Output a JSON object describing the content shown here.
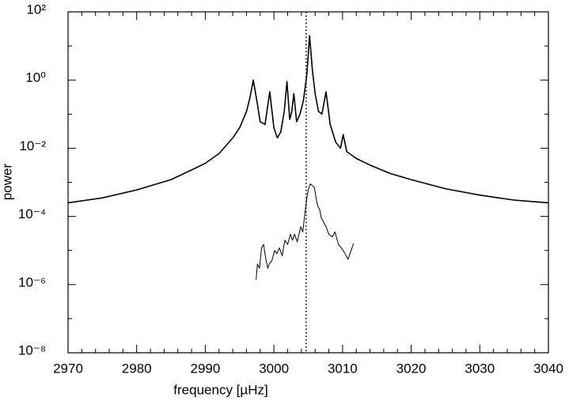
{
  "chart_data": {
    "type": "line",
    "xlabel": "frequency [µHz]",
    "ylabel": "power",
    "xlim": [
      2970,
      3040
    ],
    "ylim": [
      1e-08,
      100
    ],
    "yscale": "log",
    "xticks": [
      2970,
      2980,
      2990,
      3000,
      3010,
      3020,
      3030,
      3040
    ],
    "xminorticks": [
      2972,
      2974,
      2976,
      2978,
      2982,
      2984,
      2986,
      2988,
      2992,
      2994,
      2996,
      2998,
      3002,
      3004,
      3006,
      3008,
      3012,
      3014,
      3016,
      3018,
      3022,
      3024,
      3026,
      3028,
      3032,
      3034,
      3036,
      3038
    ],
    "yticks": [
      {
        "value": 1e-08,
        "label": "10⁻⁸"
      },
      {
        "value": 1e-06,
        "label": "10⁻⁶"
      },
      {
        "value": 0.0001,
        "label": "10⁻⁴"
      },
      {
        "value": 0.01,
        "label": "10⁻²"
      },
      {
        "value": 1,
        "label": "10⁰"
      },
      {
        "value": 100,
        "label": "10²"
      }
    ],
    "yminorticks": [
      1e-07,
      1e-05,
      0.001,
      0.1,
      10
    ],
    "vlines": [
      3004.7
    ],
    "series": [
      {
        "color": "#000000",
        "width": 1.6,
        "x": [
          2970,
          2975,
          2980,
          2985,
          2988,
          2990,
          2992,
          2994,
          2995,
          2996,
          2996.5,
          2997,
          2997.5,
          2998,
          2998.7,
          2999.4,
          3000,
          3000.5,
          3001,
          3001.5,
          3001.9,
          3002.3,
          3002.6,
          3002.9,
          3003.3,
          3003.8,
          3004.3,
          3004.8,
          3005.2,
          3005.6,
          3006,
          3006.5,
          3007,
          3007.6,
          3008.2,
          3009,
          3009.7,
          3010.1,
          3010.6,
          3012,
          3014,
          3017,
          3020,
          3025,
          3030,
          3035,
          3040
        ],
        "values": [
          0.00025,
          0.00035,
          0.0006,
          0.0012,
          0.0023,
          0.0036,
          0.007,
          0.02,
          0.04,
          0.12,
          0.3,
          1.0,
          0.25,
          0.06,
          0.05,
          0.45,
          0.04,
          0.02,
          0.03,
          0.12,
          0.9,
          0.07,
          0.12,
          0.4,
          0.06,
          0.1,
          0.25,
          1.5,
          20,
          2,
          0.4,
          0.12,
          0.1,
          0.45,
          0.05,
          0.015,
          0.01,
          0.025,
          0.008,
          0.005,
          0.0032,
          0.0018,
          0.0012,
          0.00065,
          0.00042,
          0.0003,
          0.00025
        ]
      },
      {
        "color": "#000000",
        "width": 1,
        "x": [
          2997.4,
          2997.6,
          2997.9,
          2998.2,
          2998.5,
          2998.8,
          2999.1,
          2999.3,
          2999.7,
          3000.1,
          3000.4,
          3000.8,
          3001.2,
          3001.6,
          3002.0,
          3002.4,
          3002.7,
          3003.0,
          3003.4,
          3003.9,
          3004.2,
          3004.5,
          3004.8,
          3005.0,
          3005.3,
          3005.6,
          3005.9,
          3006.2,
          3006.4,
          3006.7,
          3006.9,
          3007.2,
          3007.6,
          3008.0,
          3008.5,
          3008.9,
          3009.4,
          3009.8,
          3010.3,
          3010.8,
          3011.2,
          3011.6
        ],
        "values": [
          1.4e-06,
          4e-06,
          3e-06,
          1.2e-05,
          1.5e-05,
          6e-06,
          3e-06,
          4e-06,
          5e-06,
          1e-05,
          8e-06,
          1.2e-05,
          7e-06,
          2e-05,
          1.5e-05,
          3e-05,
          2e-05,
          3e-05,
          1.8e-05,
          5e-05,
          3.5e-05,
          0.00012,
          0.00035,
          0.0006,
          0.0009,
          0.0008,
          0.0007,
          0.0003,
          0.0002,
          0.00015,
          9e-05,
          7e-05,
          5e-05,
          3e-05,
          2.5e-05,
          3.5e-05,
          1.5e-05,
          1.2e-05,
          8.5e-06,
          5.5e-06,
          9.5e-06,
          1.6e-05
        ]
      }
    ]
  }
}
